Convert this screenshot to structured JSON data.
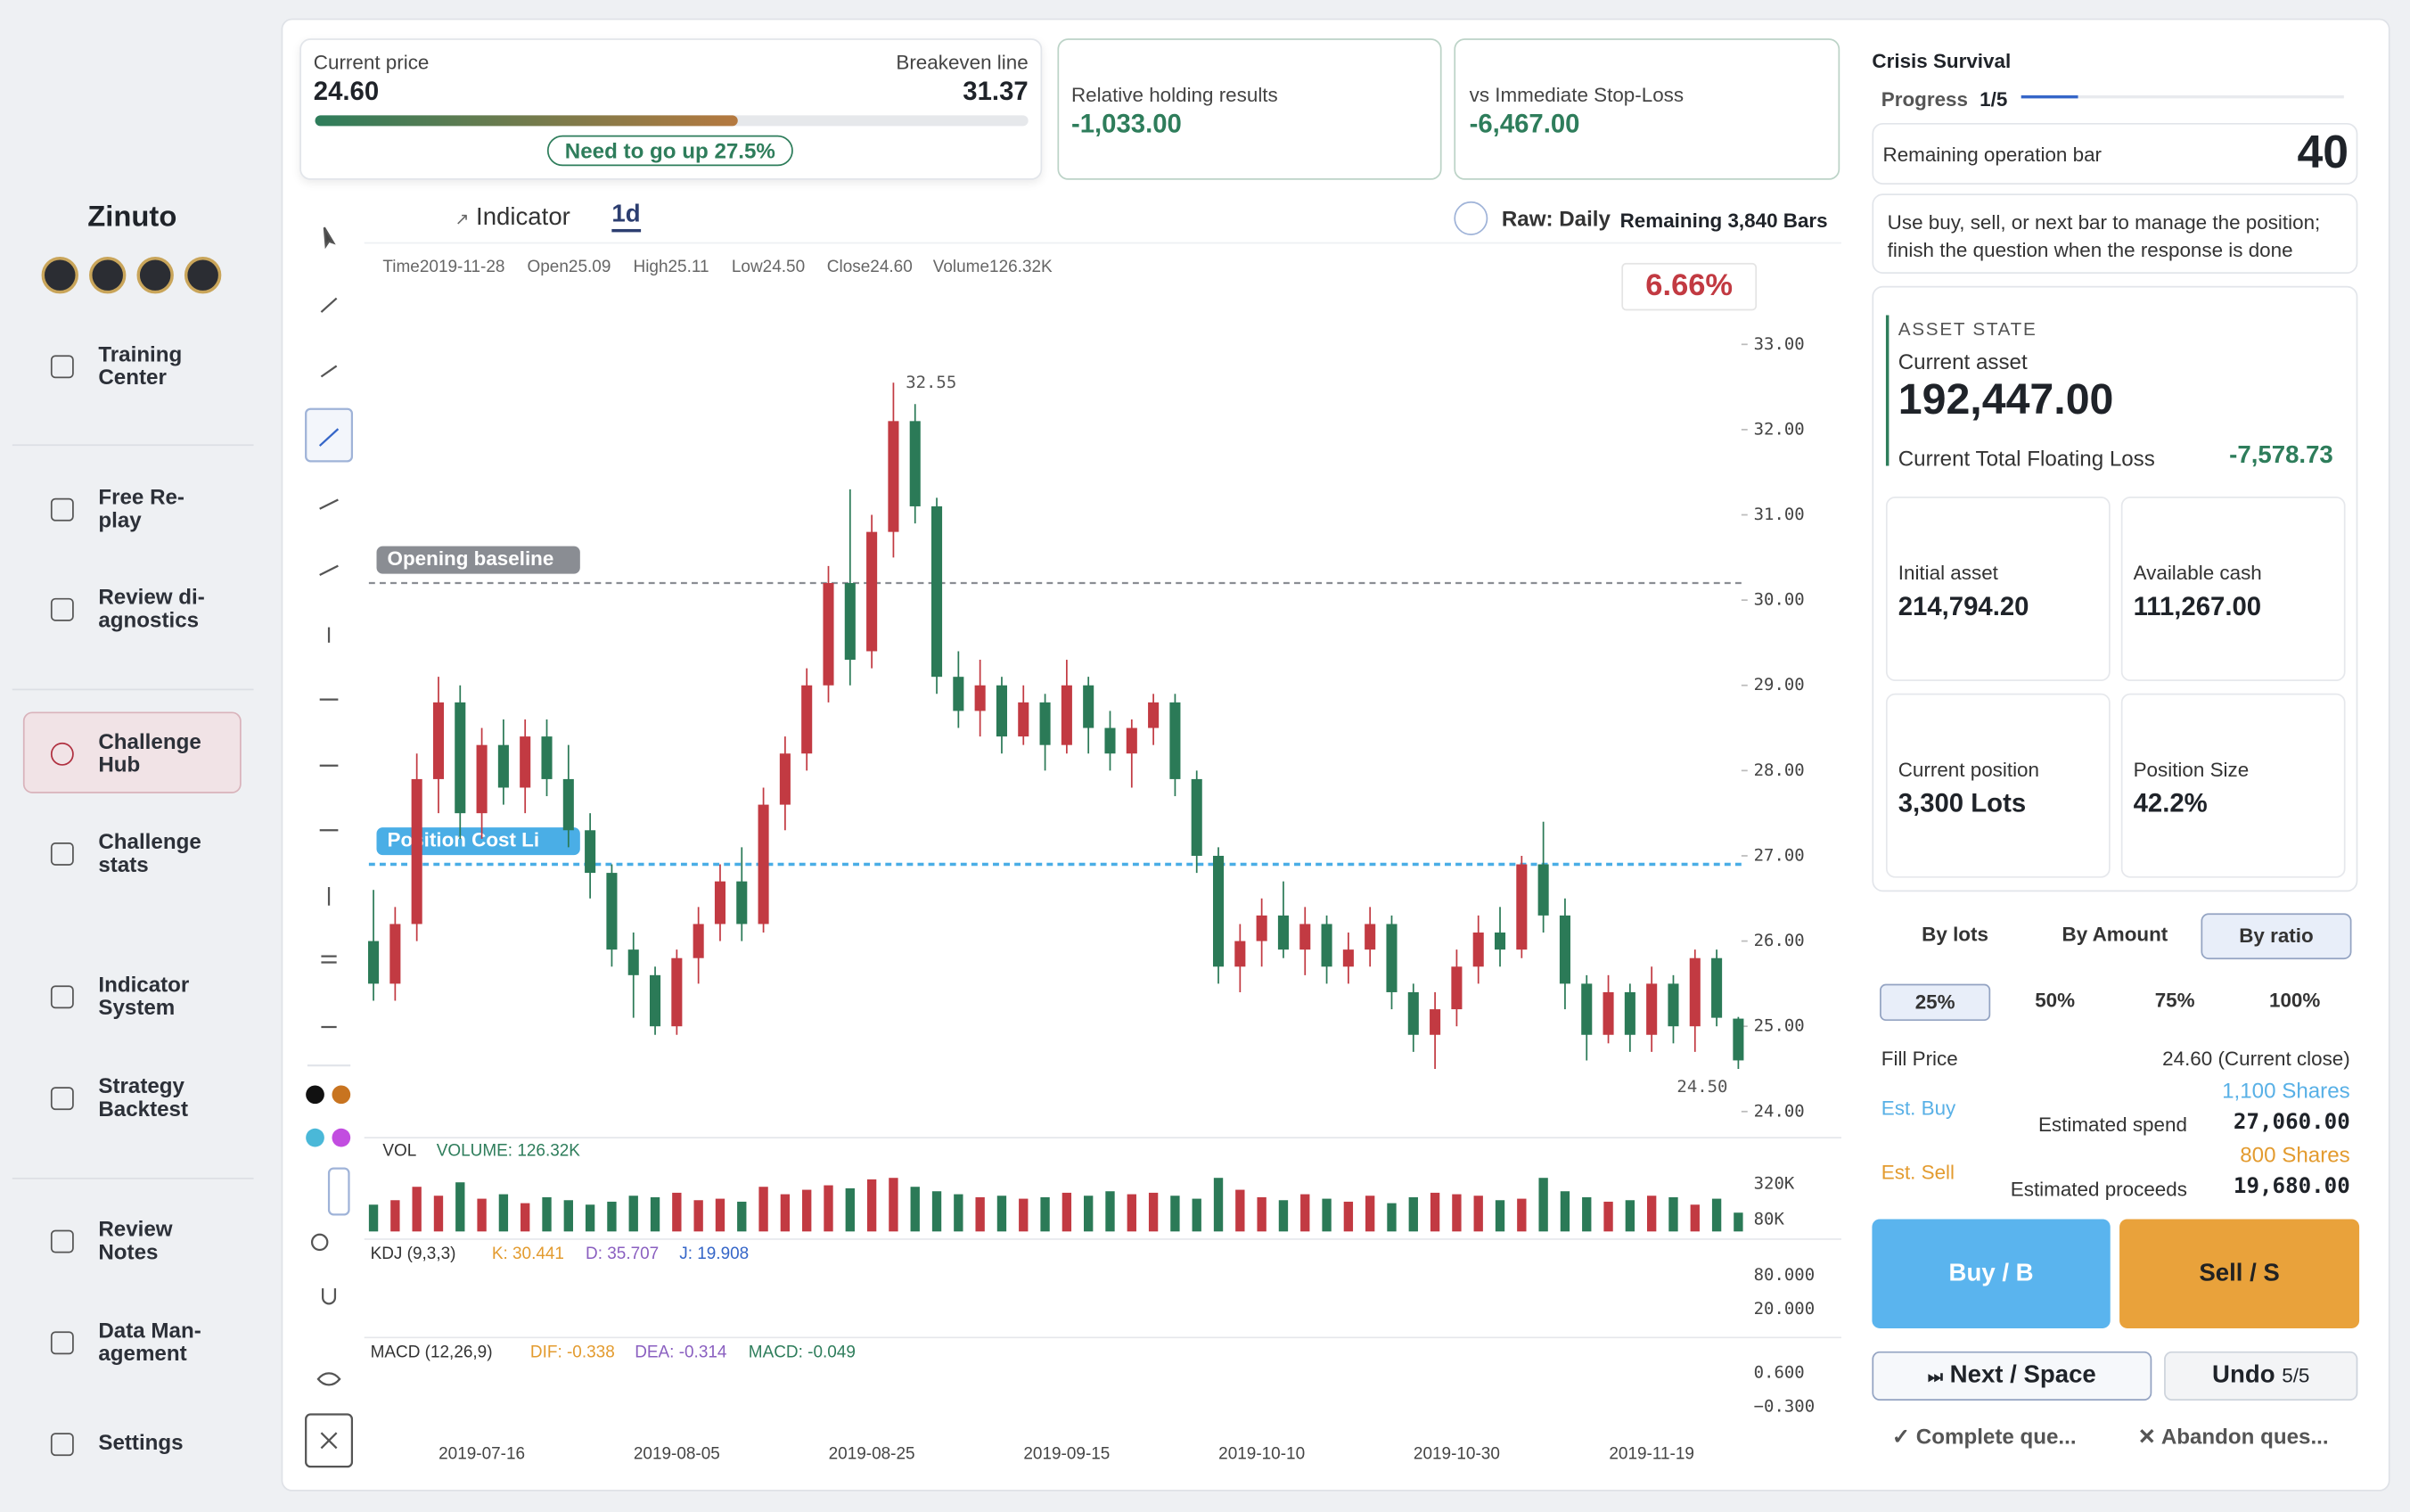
{
  "sidebar": {
    "brand": "Zinuto",
    "nav": [
      "Training\nCenter",
      "Free Re-\nplay",
      "Review di-\nagnostics",
      "Challenge\nHub",
      "Challenge\nstats",
      "Indicator\nSystem",
      "Strategy\nBacktest",
      "Review\nNotes",
      "Data Man-\nagement",
      "Settings"
    ]
  },
  "summary": {
    "current_price_label": "Current price",
    "current_price": "24.60",
    "breakeven_label": "Breakeven line",
    "breakeven": "31.37",
    "note": "Need to go up 27.5%",
    "relative_label": "Relative holding results",
    "relative_value": "-1,033.00",
    "stoploss_label": "vs Immediate Stop-Loss",
    "stoploss_value": "-6,467.00"
  },
  "chart_header": {
    "indicator": "Indicator",
    "period": "1d",
    "mode": "Raw: Daily",
    "remaining": "Remaining 3,840 Bars",
    "ohlc": [
      "Time2019-11-28",
      "Open25.09",
      "High25.11",
      "Low24.50",
      "Close24.60",
      "Volume126.32K"
    ],
    "change": "6.66%"
  },
  "chart_data": {
    "type": "candlestick",
    "categories": [
      null,
      null,
      null,
      null,
      null,
      "2019-07-16",
      null,
      null,
      null,
      null,
      null,
      null,
      null,
      null,
      "2019-08-05",
      null,
      null,
      null,
      null,
      null,
      null,
      null,
      null,
      "2019-08-25",
      null,
      null,
      null,
      null,
      null,
      null,
      null,
      null,
      "2019-09-15",
      null,
      null,
      null,
      null,
      null,
      null,
      null,
      null,
      "2019-10-10",
      null,
      null,
      null,
      null,
      null,
      null,
      null,
      null,
      "2019-10-30",
      null,
      null,
      null,
      null,
      null,
      null,
      null,
      null,
      "2019-11-19",
      null,
      null,
      null,
      null
    ],
    "candles": [
      [
        26.0,
        26.6,
        25.3,
        25.5
      ],
      [
        25.5,
        26.4,
        25.3,
        26.2
      ],
      [
        26.2,
        28.2,
        26.0,
        27.9
      ],
      [
        27.9,
        29.1,
        27.5,
        28.8
      ],
      [
        28.8,
        29.0,
        27.2,
        27.5
      ],
      [
        27.5,
        28.5,
        27.2,
        28.3
      ],
      [
        28.3,
        28.6,
        27.6,
        27.8
      ],
      [
        27.8,
        28.6,
        27.5,
        28.4
      ],
      [
        28.4,
        28.6,
        27.7,
        27.9
      ],
      [
        27.9,
        28.3,
        27.1,
        27.3
      ],
      [
        27.3,
        27.5,
        26.5,
        26.8
      ],
      [
        26.8,
        26.9,
        25.7,
        25.9
      ],
      [
        25.9,
        26.1,
        25.1,
        25.6
      ],
      [
        25.6,
        25.7,
        24.9,
        25.0
      ],
      [
        25.0,
        25.9,
        24.9,
        25.8
      ],
      [
        25.8,
        26.4,
        25.5,
        26.2
      ],
      [
        26.2,
        26.9,
        26.0,
        26.7
      ],
      [
        26.7,
        27.1,
        26.0,
        26.2
      ],
      [
        26.2,
        27.8,
        26.1,
        27.6
      ],
      [
        27.6,
        28.4,
        27.3,
        28.2
      ],
      [
        28.2,
        29.2,
        28.0,
        29.0
      ],
      [
        29.0,
        30.4,
        28.8,
        30.2
      ],
      [
        30.2,
        31.3,
        29.0,
        29.3
      ],
      [
        29.4,
        31.0,
        29.2,
        30.8
      ],
      [
        30.8,
        32.55,
        30.5,
        32.1
      ],
      [
        32.1,
        32.3,
        30.9,
        31.1
      ],
      [
        31.1,
        31.2,
        28.9,
        29.1
      ],
      [
        29.1,
        29.4,
        28.5,
        28.7
      ],
      [
        28.7,
        29.3,
        28.4,
        29.0
      ],
      [
        29.0,
        29.1,
        28.2,
        28.4
      ],
      [
        28.4,
        29.0,
        28.3,
        28.8
      ],
      [
        28.8,
        28.9,
        28.0,
        28.3
      ],
      [
        28.3,
        29.3,
        28.2,
        29.0
      ],
      [
        29.0,
        29.1,
        28.2,
        28.5
      ],
      [
        28.5,
        28.7,
        28.0,
        28.2
      ],
      [
        28.2,
        28.6,
        27.8,
        28.5
      ],
      [
        28.5,
        28.9,
        28.3,
        28.8
      ],
      [
        28.8,
        28.9,
        27.7,
        27.9
      ],
      [
        27.9,
        28.0,
        26.8,
        27.0
      ],
      [
        27.0,
        27.1,
        25.5,
        25.7
      ],
      [
        25.7,
        26.2,
        25.4,
        26.0
      ],
      [
        26.0,
        26.5,
        25.7,
        26.3
      ],
      [
        26.3,
        26.7,
        25.8,
        25.9
      ],
      [
        25.9,
        26.4,
        25.6,
        26.2
      ],
      [
        26.2,
        26.3,
        25.5,
        25.7
      ],
      [
        25.7,
        26.1,
        25.5,
        25.9
      ],
      [
        25.9,
        26.4,
        25.7,
        26.2
      ],
      [
        26.2,
        26.3,
        25.2,
        25.4
      ],
      [
        25.4,
        25.5,
        24.7,
        24.9
      ],
      [
        24.9,
        25.4,
        24.5,
        25.2
      ],
      [
        25.2,
        25.9,
        25.0,
        25.7
      ],
      [
        25.7,
        26.3,
        25.5,
        26.1
      ],
      [
        26.1,
        26.4,
        25.7,
        25.9
      ],
      [
        25.9,
        27.0,
        25.8,
        26.9
      ],
      [
        26.9,
        27.4,
        26.1,
        26.3
      ],
      [
        26.3,
        26.5,
        25.2,
        25.5
      ],
      [
        25.5,
        25.6,
        24.6,
        24.9
      ],
      [
        24.9,
        25.6,
        24.8,
        25.4
      ],
      [
        25.4,
        25.5,
        24.7,
        24.9
      ],
      [
        24.9,
        25.7,
        24.7,
        25.5
      ],
      [
        25.5,
        25.6,
        24.8,
        25.0
      ],
      [
        25.0,
        25.9,
        24.7,
        25.8
      ],
      [
        25.8,
        25.9,
        25.0,
        25.1
      ],
      [
        25.09,
        25.11,
        24.5,
        24.6
      ]
    ],
    "up_color": "#c23a42",
    "down_color": "#2b7a57",
    "ylim": [
      24,
      33
    ],
    "yticks": [
      {
        "value": 24,
        "label": "24.00"
      },
      {
        "value": 25,
        "label": "25.00"
      },
      {
        "value": 26,
        "label": "26.00"
      },
      {
        "value": 27,
        "label": "27.00"
      },
      {
        "value": 28,
        "label": "28.00"
      },
      {
        "value": 29,
        "label": "29.00"
      },
      {
        "value": 30,
        "label": "30.00"
      },
      {
        "value": 31,
        "label": "31.00"
      },
      {
        "value": 32,
        "label": "32.00"
      },
      {
        "value": 33,
        "label": "33.00"
      }
    ],
    "lines": [
      {
        "label": "Opening baseline",
        "value": 30.2,
        "color": "#8a8d93"
      },
      {
        "label": "Position Cost Li",
        "value": 26.9,
        "color": "#4aaee6"
      }
    ],
    "annotations": [
      {
        "candle": 24,
        "value": 32.55,
        "label": "32.55"
      },
      {
        "candle": 63,
        "value": 24.5,
        "label": "24.50"
      }
    ],
    "volume": {
      "title": "VOL",
      "label": "VOLUME: 126.32K",
      "values": [
        180,
        210,
        300,
        240,
        330,
        220,
        250,
        190,
        230,
        210,
        180,
        200,
        240,
        230,
        260,
        210,
        220,
        200,
        300,
        250,
        280,
        310,
        290,
        350,
        360,
        300,
        270,
        250,
        230,
        240,
        220,
        230,
        260,
        240,
        270,
        250,
        260,
        240,
        220,
        360,
        280,
        230,
        210,
        250,
        220,
        200,
        240,
        190,
        230,
        260,
        250,
        240,
        210,
        220,
        360,
        270,
        230,
        200,
        210,
        240,
        230,
        180,
        220,
        126.32
      ],
      "ylim": [
        0,
        630
      ],
      "yticks": [
        {
          "value": 80,
          "label": "80K"
        },
        {
          "value": 320,
          "label": "320K"
        }
      ]
    },
    "kdj": {
      "title": "KDJ (9,3,3)",
      "k": "K: 30.441",
      "d": "D: 35.707",
      "j": "J: 19.908",
      "ylim": [
        0,
        100
      ],
      "yticks": [
        {
          "value": 80,
          "label": "80.000"
        },
        {
          "value": 20,
          "label": "20.000"
        }
      ]
    },
    "macd": {
      "title": "MACD (12,26,9)",
      "dif": "DIF: -0.338",
      "dea": "DEA: -0.314",
      "macd": "MACD: -0.049",
      "ylim": [
        -0.6,
        0.9
      ],
      "yticks": [
        {
          "value": 0.6,
          "label": "0.600"
        },
        {
          "value": -0.3,
          "label": "−0.300"
        }
      ]
    }
  },
  "panel": {
    "title": "Crisis Survival",
    "progress_label": "Progress",
    "progress": "1/5",
    "remaining_label": "Remaining operation bar",
    "remaining": "40",
    "instruction": "Use buy, sell, or next bar to manage the position; finish the question when the response is done",
    "asset_state": "ASSET STATE",
    "current_asset_label": "Current asset",
    "current_asset": "192,447.00",
    "floating_label": "Current Total Floating Loss",
    "floating": "-7,578.73",
    "stats": [
      {
        "label": "Initial asset",
        "value": "214,794.20"
      },
      {
        "label": "Available cash",
        "value": "111,267.00"
      },
      {
        "label": "Current position",
        "value": "3,300 Lots"
      },
      {
        "label": "Position Size",
        "value": "42.2%"
      }
    ],
    "tabs": [
      "By lots",
      "By Amount",
      "By ratio"
    ],
    "ratios": [
      "25%",
      "50%",
      "75%",
      "100%"
    ],
    "fill_label": "Fill Price",
    "fill_value": "24.60 (Current close)",
    "buy_label": "Est. Buy",
    "buy_shares": "1,100 Shares",
    "spend_label": "Estimated spend",
    "spend": "27,060.00",
    "sell_label": "Est. Sell",
    "sell_shares": "800 Shares",
    "proceeds_label": "Estimated proceeds",
    "proceeds": "19,680.00",
    "buy_button": "Buy / B",
    "sell_button": "Sell / S",
    "next_button": "Next / Space",
    "undo_button": "Undo",
    "undo_count": "5/5",
    "complete": "Complete que...",
    "abandon": "Abandon ques..."
  }
}
